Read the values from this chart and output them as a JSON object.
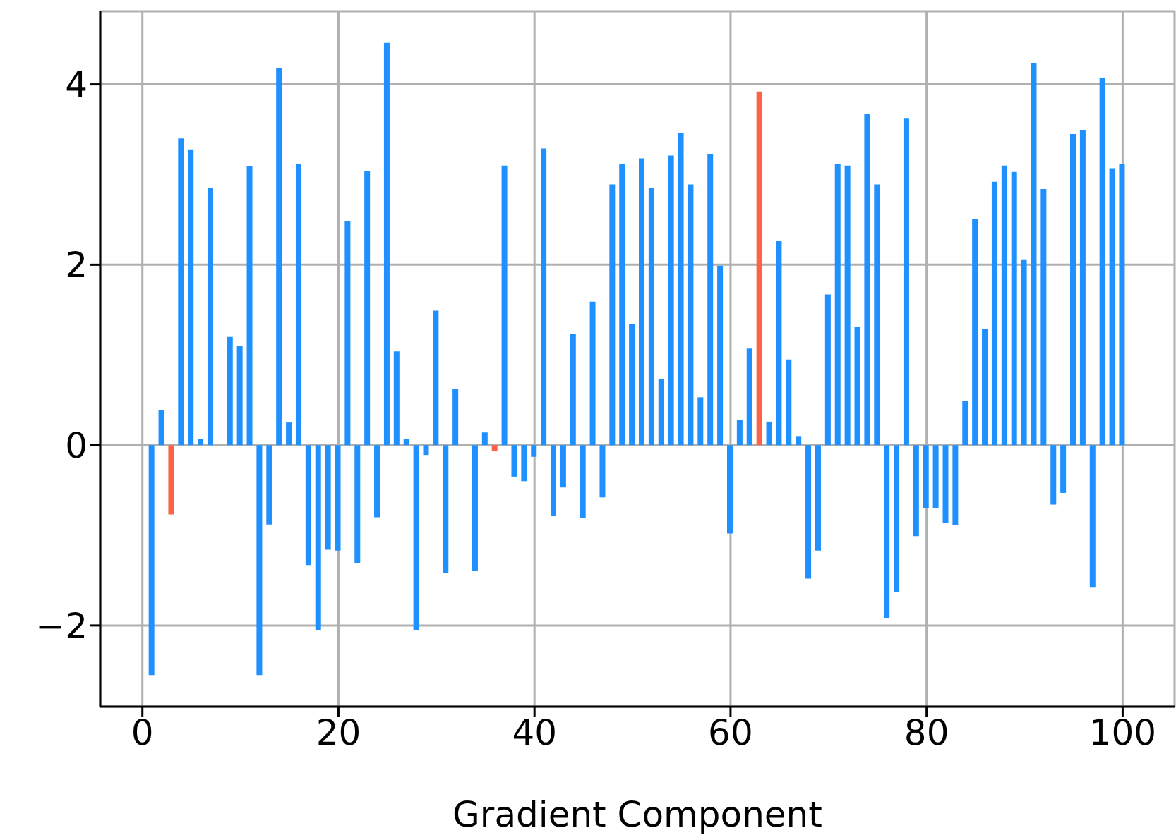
{
  "chart_data": {
    "type": "bar",
    "xlabel": "Gradient Component",
    "x": [
      1,
      2,
      3,
      4,
      5,
      6,
      7,
      8,
      9,
      10,
      11,
      12,
      13,
      14,
      15,
      16,
      17,
      18,
      19,
      20,
      21,
      22,
      23,
      24,
      25,
      26,
      27,
      28,
      29,
      30,
      31,
      32,
      33,
      34,
      35,
      36,
      37,
      38,
      39,
      40,
      41,
      42,
      43,
      44,
      45,
      46,
      47,
      48,
      49,
      50,
      51,
      52,
      53,
      54,
      55,
      56,
      57,
      58,
      59,
      60,
      61,
      62,
      63,
      64,
      65,
      66,
      67,
      68,
      69,
      70,
      71,
      72,
      73,
      74,
      75,
      76,
      77,
      78,
      79,
      80,
      81,
      82,
      83,
      84,
      85,
      86,
      87,
      88,
      89,
      90,
      91,
      92,
      93,
      94,
      95,
      96,
      97,
      98,
      99,
      100
    ],
    "values": [
      -2.55,
      0.39,
      -0.77,
      3.4,
      3.28,
      0.07,
      2.85,
      0,
      1.2,
      1.1,
      3.09,
      -2.55,
      -0.88,
      4.18,
      0.25,
      3.12,
      -1.33,
      -2.05,
      -1.16,
      -1.17,
      2.48,
      -1.31,
      3.04,
      -0.8,
      4.46,
      1.04,
      0.07,
      -2.05,
      -0.11,
      1.49,
      -1.42,
      0.62,
      0,
      -1.39,
      0.14,
      -0.07,
      3.1,
      -0.35,
      -0.4,
      -0.13,
      3.29,
      -0.78,
      -0.47,
      1.23,
      -0.81,
      1.59,
      -0.58,
      2.89,
      3.12,
      1.34,
      3.18,
      2.85,
      0.73,
      3.21,
      3.46,
      2.89,
      0.53,
      3.23,
      1.99,
      -0.98,
      0.28,
      1.07,
      3.92,
      0.26,
      2.26,
      0.95,
      0.1,
      -1.48,
      -1.17,
      1.67,
      3.12,
      3.1,
      1.31,
      3.67,
      2.89,
      -1.92,
      -1.63,
      3.62,
      -1.01,
      -0.7,
      -0.7,
      -0.86,
      -0.89,
      0.49,
      2.51,
      1.29,
      2.92,
      3.1,
      3.03,
      2.06,
      4.24,
      2.84,
      -0.66,
      -0.53,
      3.45,
      3.49,
      -1.58,
      4.07,
      3.07,
      3.12
    ],
    "colors": [
      "#1e90ff",
      "#1e90ff",
      "#ff6347",
      "#1e90ff",
      "#1e90ff",
      "#1e90ff",
      "#1e90ff",
      "#1e90ff",
      "#1e90ff",
      "#1e90ff",
      "#1e90ff",
      "#1e90ff",
      "#1e90ff",
      "#1e90ff",
      "#1e90ff",
      "#1e90ff",
      "#1e90ff",
      "#1e90ff",
      "#1e90ff",
      "#1e90ff",
      "#1e90ff",
      "#1e90ff",
      "#1e90ff",
      "#1e90ff",
      "#1e90ff",
      "#1e90ff",
      "#1e90ff",
      "#1e90ff",
      "#1e90ff",
      "#1e90ff",
      "#1e90ff",
      "#1e90ff",
      "#1e90ff",
      "#1e90ff",
      "#1e90ff",
      "#ff6347",
      "#1e90ff",
      "#1e90ff",
      "#1e90ff",
      "#1e90ff",
      "#1e90ff",
      "#1e90ff",
      "#1e90ff",
      "#1e90ff",
      "#1e90ff",
      "#1e90ff",
      "#1e90ff",
      "#1e90ff",
      "#1e90ff",
      "#1e90ff",
      "#1e90ff",
      "#1e90ff",
      "#1e90ff",
      "#1e90ff",
      "#1e90ff",
      "#1e90ff",
      "#1e90ff",
      "#1e90ff",
      "#1e90ff",
      "#1e90ff",
      "#1e90ff",
      "#1e90ff",
      "#ff6347",
      "#1e90ff",
      "#1e90ff",
      "#1e90ff",
      "#1e90ff",
      "#1e90ff",
      "#1e90ff",
      "#1e90ff",
      "#1e90ff",
      "#1e90ff",
      "#1e90ff",
      "#1e90ff",
      "#1e90ff",
      "#1e90ff",
      "#1e90ff",
      "#1e90ff",
      "#1e90ff",
      "#1e90ff",
      "#1e90ff",
      "#1e90ff",
      "#1e90ff",
      "#1e90ff",
      "#1e90ff",
      "#1e90ff",
      "#1e90ff",
      "#1e90ff",
      "#1e90ff",
      "#1e90ff",
      "#1e90ff",
      "#1e90ff",
      "#1e90ff",
      "#1e90ff",
      "#1e90ff",
      "#1e90ff",
      "#1e90ff",
      "#1e90ff",
      "#1e90ff",
      "#1e90ff"
    ],
    "xlim": [
      -4.3,
      105.3
    ],
    "ylim": [
      -2.9,
      4.81
    ],
    "xticks": [
      0,
      20,
      40,
      60,
      80,
      100
    ],
    "yticks": [
      {
        "value": -2,
        "label": "−2"
      },
      0,
      2,
      4
    ],
    "grid": true
  }
}
